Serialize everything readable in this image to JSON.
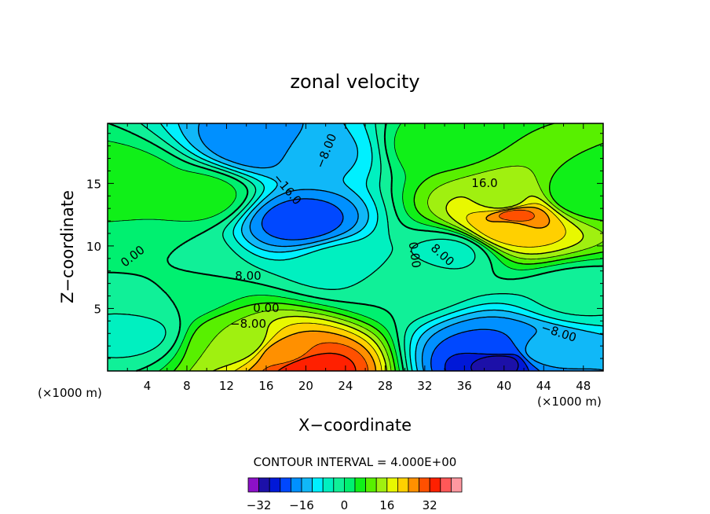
{
  "chart_data": {
    "type": "heatmap",
    "title": "zonal velocity",
    "xlabel": "X−coordinate",
    "ylabel": "Z−coordinate",
    "x_unit_left": "(×1000 m)",
    "x_unit_right": "(×1000 m)",
    "xlim": [
      0,
      50
    ],
    "ylim": [
      0,
      19.8
    ],
    "x_ticks": [
      "4",
      "8",
      "12",
      "16",
      "20",
      "24",
      "28",
      "32",
      "36",
      "40",
      "44",
      "48"
    ],
    "y_ticks": [
      "5",
      "10",
      "15"
    ],
    "contour_interval_text": "CONTOUR INTERVAL = 4.000E+00",
    "contour_labels": [
      "0.00",
      "8.00",
      "−8.00",
      "0.00",
      "−16.0",
      "−8.00",
      "0.00",
      "16.0",
      "8.00",
      "−8.00"
    ],
    "colorbar": {
      "levels": [
        -36,
        -32,
        -28,
        -24,
        -20,
        -16,
        -12,
        -8,
        -4,
        0,
        4,
        8,
        12,
        16,
        20,
        24,
        28,
        32,
        36,
        40
      ],
      "colors": [
        "#8c10c8",
        "#1c10a8",
        "#0018d8",
        "#0048ff",
        "#0090ff",
        "#10b8f8",
        "#00f0ff",
        "#00f0c0",
        "#10f098",
        "#00f070",
        "#10f018",
        "#58f000",
        "#a0f010",
        "#e8f800",
        "#ffd000",
        "#ff9000",
        "#ff5000",
        "#ff2000",
        "#ff5858",
        "#ff98a0"
      ],
      "tick_labels": [
        "−32",
        "−16",
        "0",
        "16",
        "32"
      ]
    },
    "features": [
      {
        "x": 20,
        "y": 0.3,
        "value": 36
      },
      {
        "x": 18,
        "y": 1.3,
        "value": 26
      },
      {
        "x": 13,
        "y": 2.2,
        "value": 12
      },
      {
        "x": 41,
        "y": 12.4,
        "value": 30
      },
      {
        "x": 40.5,
        "y": 11.5,
        "value": 22
      },
      {
        "x": 40,
        "y": 13.5,
        "value": 14
      },
      {
        "x": 39.5,
        "y": 0.8,
        "value": -30
      },
      {
        "x": 39.5,
        "y": 1.8,
        "value": -20
      },
      {
        "x": 44,
        "y": 1.6,
        "value": -14
      },
      {
        "x": 19.5,
        "y": 12,
        "value": -22
      },
      {
        "x": 15.5,
        "y": 18.2,
        "value": -20
      },
      {
        "x": 21,
        "y": 17.5,
        "value": -13
      },
      {
        "x": 24,
        "y": 8.5,
        "value": -6
      },
      {
        "x": 5.5,
        "y": 9,
        "value": 0
      },
      {
        "x": 6,
        "y": 6.3,
        "value": 0
      },
      {
        "x": 30,
        "y": 7,
        "value": 0
      },
      {
        "x": 2.5,
        "y": 3,
        "value": -5
      },
      {
        "x": 34.5,
        "y": 9.5,
        "value": -5
      },
      {
        "x": 1.5,
        "y": 15,
        "value": 7
      },
      {
        "x": 9,
        "y": 14,
        "value": 6
      },
      {
        "x": 34,
        "y": 18,
        "value": 7
      },
      {
        "x": 48,
        "y": 14,
        "value": 4
      },
      {
        "x": 47.5,
        "y": 6,
        "value": -3
      }
    ]
  }
}
